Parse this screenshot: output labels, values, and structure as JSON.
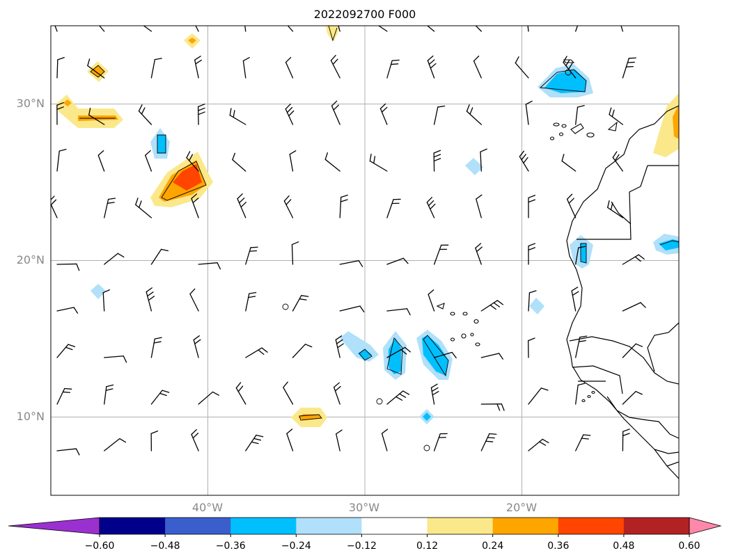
{
  "title": "2022092700 F000",
  "axes": {
    "lat_labels": [
      "30°N",
      "20°N",
      "10°N"
    ],
    "lon_labels": [
      "40°W",
      "30°W",
      "20°W"
    ],
    "lat_values": [
      30,
      20,
      10
    ],
    "lon_values": [
      -40,
      -30,
      -20
    ],
    "extent": {
      "lon_min": -50,
      "lon_max": -10,
      "lat_min": 5,
      "lat_max": 35
    },
    "grid": true
  },
  "colorbar": {
    "tick_labels": [
      "−0.60",
      "−0.48",
      "−0.36",
      "−0.24",
      "−0.12",
      "0.12",
      "0.24",
      "0.36",
      "0.48",
      "0.60"
    ],
    "colors": [
      "#9b30d0",
      "#00008b",
      "#3a5fcd",
      "#00bfff",
      "#b0e0fa",
      "#ffffff",
      "#fbe88a",
      "#ffa500",
      "#ff4500",
      "#b22222",
      "#ff88aa"
    ],
    "extend": "both"
  },
  "fill_colors": {
    "light_blue": "#b0e0fa",
    "blue": "#00bfff",
    "light_yellow": "#fbe88a",
    "orange": "#ffa500",
    "red_orange": "#ff4500"
  },
  "map_features": [
    "coastline",
    "country-borders",
    "canary-islands",
    "cape-verde-islands",
    "wind-barbs",
    "contour-shading"
  ]
}
